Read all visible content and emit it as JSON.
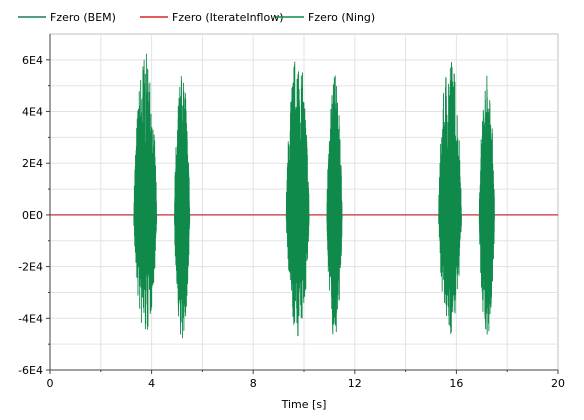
{
  "chart_data": {
    "type": "line",
    "xlabel": "Time [s]",
    "ylabel": "",
    "xlim": [
      0,
      20
    ],
    "ylim": [
      -60000,
      70000
    ],
    "grid": true,
    "legend_placement": "top",
    "x_ticks": [
      0,
      4,
      8,
      12,
      16,
      20
    ],
    "x_tick_labels": [
      "0",
      "4",
      "8",
      "12",
      "16",
      "20"
    ],
    "y_ticks": [
      -60000,
      -40000,
      -20000,
      0,
      20000,
      40000,
      60000
    ],
    "y_tick_labels": [
      "-6E4",
      "-4E4",
      "-2E4",
      "0E0",
      "2E4",
      "4E4",
      "6E4"
    ],
    "series": [
      {
        "name": "Fzero (BEM)",
        "color": "#1a7a5a",
        "points": [
          [
            0,
            0
          ],
          [
            20,
            0
          ]
        ]
      },
      {
        "name": "Fzero (IterateInflow)",
        "color": "#d62728",
        "points": [
          [
            0,
            0
          ],
          [
            20,
            0
          ]
        ]
      },
      {
        "name": "Fzero (Ning)",
        "color": "#0f8a4b",
        "bursts": [
          {
            "start": 3.3,
            "end": 4.2,
            "max": 63000,
            "min": -48000
          },
          {
            "start": 4.9,
            "end": 5.5,
            "max": 55000,
            "min": -48000
          },
          {
            "start": 9.3,
            "end": 10.2,
            "max": 64000,
            "min": -48000
          },
          {
            "start": 10.9,
            "end": 11.5,
            "max": 55000,
            "min": -48000
          },
          {
            "start": 15.3,
            "end": 16.2,
            "max": 63000,
            "min": -47000
          },
          {
            "start": 16.9,
            "end": 17.5,
            "max": 55000,
            "min": -48000
          }
        ]
      }
    ]
  }
}
